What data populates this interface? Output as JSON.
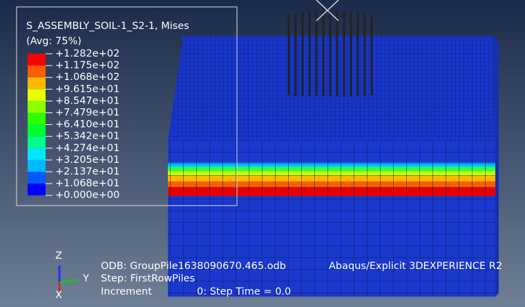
{
  "legend": {
    "title": "S_ASSEMBLY_SOIL-1_S2-1, Mises",
    "subtitle": "(Avg: 75%)",
    "labels": [
      "+1.282e+02",
      "+1.175e+02",
      "+1.068e+02",
      "+9.615e+01",
      "+8.547e+01",
      "+7.479e+01",
      "+6.410e+01",
      "+5.342e+01",
      "+4.274e+01",
      "+3.205e+01",
      "+2.137e+01",
      "+1.068e+01",
      "+0.000e+00"
    ],
    "colors": [
      "#ff0000",
      "#ff5c00",
      "#ffb900",
      "#e8ff00",
      "#8bff00",
      "#2eff00",
      "#00ff2e",
      "#00ff8b",
      "#00e8ff",
      "#00b9ff",
      "#005cff",
      "#0000ff"
    ]
  },
  "triad": {
    "z": "Z",
    "y": "Y",
    "x": "X"
  },
  "footer": {
    "odb": "ODB: GroupPile1638090670.465.odb",
    "solver": "Abaqus/Explicit 3DEXPERIENCE R2",
    "step": "Step: FirstRowPiles",
    "increment": "Increment",
    "time": "0: Step Time = 0.0"
  }
}
